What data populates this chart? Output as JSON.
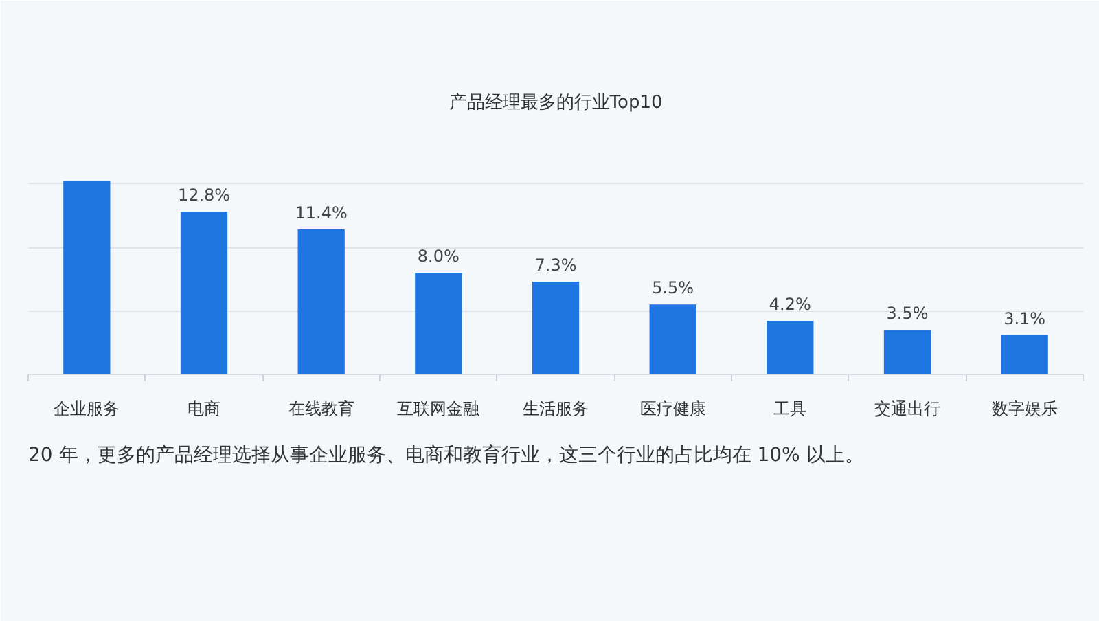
{
  "chart_data": {
    "type": "bar",
    "title": "产品经理最多的行业Top10",
    "categories": [
      "企业服务",
      "电商",
      "在线教育",
      "互联网金融",
      "生活服务",
      "医疗健康",
      "工具",
      "交通出行",
      "数字娱乐"
    ],
    "values": [
      15.2,
      12.8,
      11.4,
      8.0,
      7.3,
      5.5,
      4.2,
      3.5,
      3.1
    ],
    "color": "#1e74e0",
    "value_labels": [
      null,
      "12.8%",
      "11.4%",
      "8.0%",
      "7.3%",
      "5.5%",
      "4.2%",
      "3.5%",
      "3.1%"
    ],
    "ylim": [
      0,
      20
    ],
    "yticks": [
      {
        "value": 0,
        "label": null
      },
      {
        "value": 5,
        "label": null
      },
      {
        "value": 10,
        "label": null
      },
      {
        "value": 15,
        "label": null
      },
      {
        "value": 20,
        "label": null
      }
    ],
    "grid": "y",
    "tick_labels": "x",
    "annotations": [
      "20 年，更多的产品经理选择从事企业服务、电商和教育行业，这三个行业的占比均在 10% 以上。"
    ]
  }
}
